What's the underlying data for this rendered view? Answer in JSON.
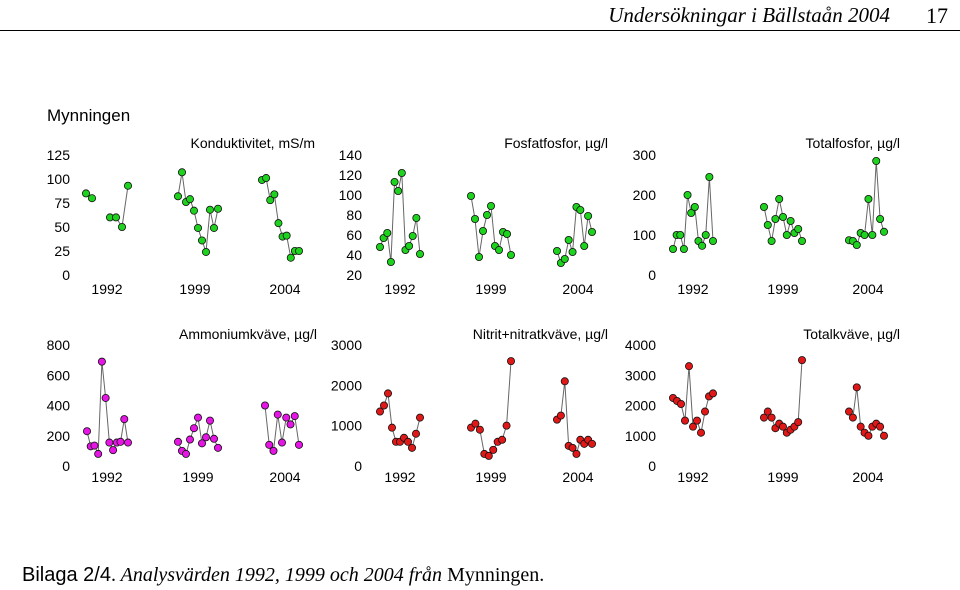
{
  "header": {
    "title": "Undersökningar i Bällstaån 2004",
    "page_number": "17"
  },
  "section_title": "Mynningen",
  "caption": {
    "label": "Bilaga 2/4",
    "sep": ".",
    "text": " Analysvärden 1992, 1999 och 2004 från ",
    "place": "Mynningen",
    "end": "."
  },
  "colors": {
    "green": "#1ed31e",
    "magenta": "#e615e6",
    "red": "#e01818",
    "line": "#666666"
  },
  "chart_data": [
    {
      "type": "scatter",
      "title": "Konduktivitet, mS/m",
      "color_key": "green",
      "ylim": [
        0,
        125
      ],
      "yticks": [
        "0",
        "25",
        "50",
        "75",
        "100",
        "125"
      ],
      "xticks": [
        "1992",
        "1999",
        "2004"
      ],
      "series": [
        {
          "year": "1992",
          "values": [
            85,
            80,
            null,
            null,
            60,
            60,
            50,
            93
          ]
        },
        {
          "year": "1999",
          "values": [
            82,
            107,
            76,
            79,
            67,
            49,
            36,
            24,
            68,
            49,
            69
          ]
        },
        {
          "year": "2004",
          "values": [
            99,
            101,
            78,
            84,
            54,
            40,
            41,
            18,
            25,
            25
          ]
        }
      ]
    },
    {
      "type": "scatter",
      "title": "Fosfatfosfor, µg/l",
      "color_key": "green",
      "ylim": [
        20,
        140
      ],
      "yticks": [
        "20",
        "40",
        "60",
        "80",
        "100",
        "120",
        "140"
      ],
      "xticks": [
        "1992",
        "1999",
        "2004"
      ],
      "series": [
        {
          "year": "1992",
          "values": [
            48,
            57,
            62,
            33,
            113,
            104,
            122,
            45,
            49,
            59,
            77,
            41
          ]
        },
        {
          "year": "1999",
          "values": [
            99,
            76,
            38,
            64,
            80,
            89,
            49,
            45,
            63,
            61,
            40
          ]
        },
        {
          "year": "2004",
          "values": [
            44,
            32,
            36,
            55,
            43,
            88,
            85,
            49,
            79,
            63
          ]
        }
      ]
    },
    {
      "type": "scatter",
      "title": "Totalfosfor, µg/l",
      "color_key": "green",
      "ylim": [
        0,
        300
      ],
      "yticks": [
        "0",
        "100",
        "200",
        "300"
      ],
      "xticks": [
        "1992",
        "1999",
        "2004"
      ],
      "series": [
        {
          "year": "1992",
          "values": [
            65,
            100,
            100,
            65,
            200,
            155,
            170,
            85,
            73,
            100,
            245,
            85
          ]
        },
        {
          "year": "1999",
          "values": [
            170,
            125,
            85,
            140,
            190,
            145,
            100,
            135,
            105,
            115,
            85
          ]
        },
        {
          "year": "2004",
          "values": [
            87,
            85,
            75,
            105,
            100,
            190,
            100,
            285,
            140,
            108
          ]
        }
      ]
    },
    {
      "type": "scatter",
      "title": "Ammoniumkväve, µg/l",
      "color_key": "magenta",
      "ylim": [
        0,
        800
      ],
      "yticks": [
        "0",
        "200",
        "400",
        "600",
        "800"
      ],
      "xticks": [
        "1992",
        "1999",
        "2004"
      ],
      "series": [
        {
          "year": "1992",
          "values": [
            230,
            130,
            135,
            80,
            690,
            450,
            155,
            105,
            155,
            160,
            310,
            155
          ]
        },
        {
          "year": "1999",
          "values": [
            160,
            100,
            80,
            175,
            250,
            320,
            150,
            190,
            300,
            180,
            120
          ]
        },
        {
          "year": "2004",
          "values": [
            400,
            140,
            100,
            340,
            155,
            320,
            275,
            330,
            140
          ]
        }
      ]
    },
    {
      "type": "scatter",
      "title": "Nitrit+nitratkväve, µg/l",
      "color_key": "red",
      "ylim": [
        0,
        3000
      ],
      "yticks": [
        "0",
        "1000",
        "2000",
        "3000"
      ],
      "xticks": [
        "1992",
        "1999",
        "2004"
      ],
      "series": [
        {
          "year": "1992",
          "values": [
            1350,
            1500,
            1800,
            950,
            600,
            600,
            700,
            600,
            450,
            800,
            1200
          ]
        },
        {
          "year": "1999",
          "values": [
            950,
            1050,
            900,
            300,
            250,
            400,
            600,
            650,
            1000,
            2600
          ]
        },
        {
          "year": "2004",
          "values": [
            1150,
            1250,
            2100,
            500,
            450,
            300,
            650,
            550,
            650,
            550
          ]
        }
      ]
    },
    {
      "type": "scatter",
      "title": "Totalkväve, µg/l",
      "color_key": "red",
      "ylim": [
        0,
        4000
      ],
      "yticks": [
        "0",
        "1000",
        "2000",
        "3000",
        "4000"
      ],
      "xticks": [
        "1992",
        "1999",
        "2004"
      ],
      "series": [
        {
          "year": "1992",
          "values": [
            2250,
            2150,
            2050,
            1500,
            3300,
            1300,
            1500,
            1100,
            1800,
            2300,
            2400
          ]
        },
        {
          "year": "1999",
          "values": [
            1600,
            1800,
            1600,
            1250,
            1400,
            1300,
            1100,
            1200,
            1300,
            1450,
            3500
          ]
        },
        {
          "year": "2004",
          "values": [
            1800,
            1600,
            2600,
            1300,
            1100,
            1000,
            1300,
            1400,
            1300,
            1000
          ]
        }
      ]
    }
  ]
}
